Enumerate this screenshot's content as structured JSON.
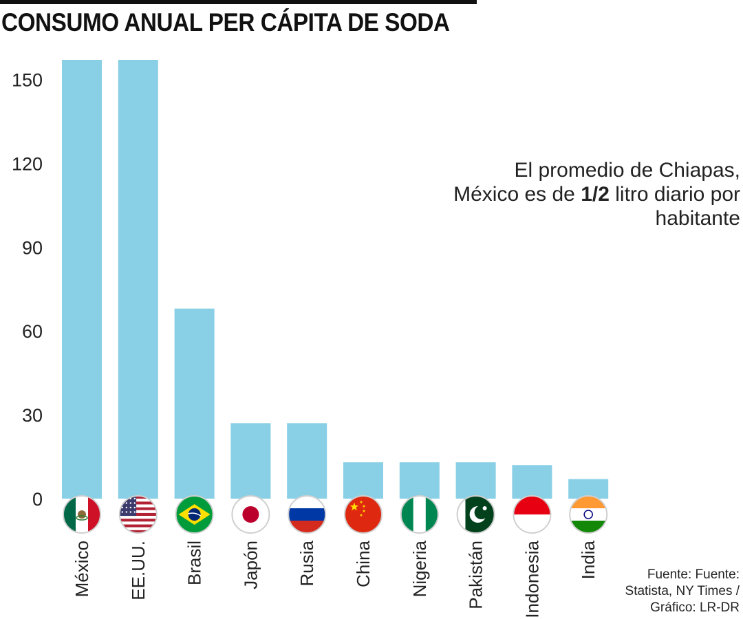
{
  "title": "CONSUMO ANUAL PER CÁPITA DE SODA",
  "annotation": {
    "before": "El promedio de Chiapas, México es de ",
    "highlight": "1/2",
    "after": " litro diario por habitante"
  },
  "source": "Fuente: Fuente: Statista, NY Times / Gráfico: LR-DR",
  "colors": {
    "bar": "#89cfe6",
    "text": "#222222",
    "rule": "#111111"
  },
  "chart_data": {
    "type": "bar",
    "title": "CONSUMO ANUAL PER CÁPITA DE SODA",
    "xlabel": "",
    "ylabel": "",
    "ylim": [
      0,
      157
    ],
    "yticks": [
      0,
      30,
      60,
      90,
      120,
      150
    ],
    "grid": false,
    "legend": "none",
    "categories": [
      "México",
      "EE.UU.",
      "Brasil",
      "Japón",
      "Rusia",
      "China",
      "Nigeria",
      "Pakistán",
      "Indonesia",
      "India"
    ],
    "values": [
      157,
      157,
      68,
      27,
      27,
      13,
      13,
      13,
      12,
      7
    ],
    "flags": [
      "mexico-flag-icon",
      "usa-flag-icon",
      "brazil-flag-icon",
      "japan-flag-icon",
      "russia-flag-icon",
      "china-flag-icon",
      "nigeria-flag-icon",
      "pakistan-flag-icon",
      "indonesia-flag-icon",
      "india-flag-icon"
    ]
  }
}
